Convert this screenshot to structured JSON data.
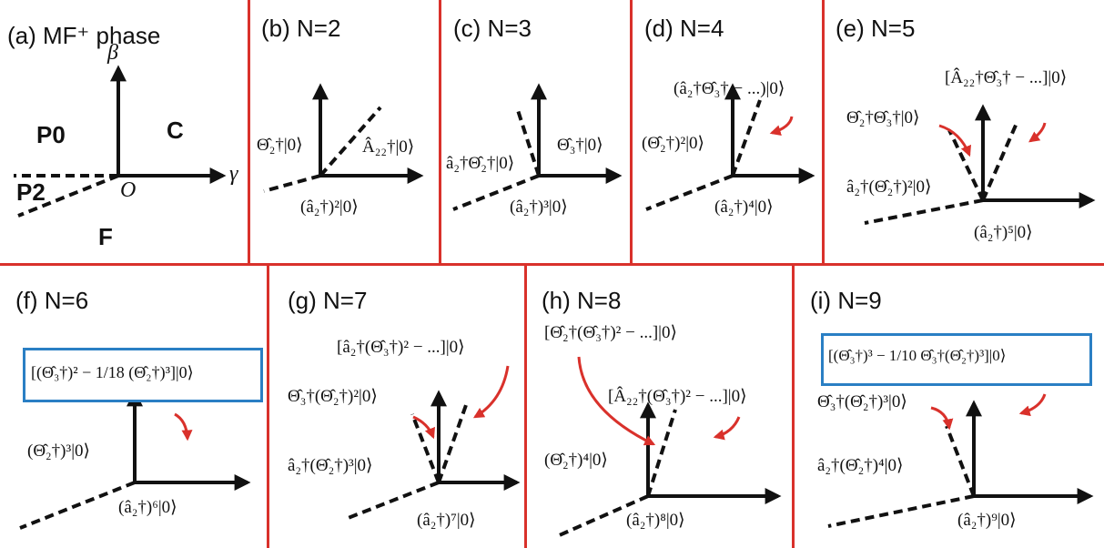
{
  "colors": {
    "divider": "#d9312b",
    "arrow": "#d9312b",
    "box": "#2a7fc4",
    "ink": "#111111"
  },
  "panels": {
    "a": {
      "title": "(a) MF⁺ phase",
      "phases": {
        "p0": "P0",
        "c": "C",
        "p2": "P2",
        "f": "F"
      },
      "axes": {
        "beta": "β",
        "gamma": "γ",
        "origin": "O"
      }
    },
    "b": {
      "title": "(b) N=2",
      "states": [
        "Θ̂₂†|0⟩",
        "Â₂₂†|0⟩",
        "(â₂†)²|0⟩"
      ]
    },
    "c": {
      "title": "(c) N=3",
      "states": [
        "â₂†Θ̂₂†|0⟩",
        "Θ̂₃†|0⟩",
        "(â₂†)³|0⟩"
      ]
    },
    "d": {
      "title": "(d) N=4",
      "states": [
        "(â₂†Θ̂₃† − ...)|0⟩",
        "(Θ̂₂†)²|0⟩",
        "(â₂†)⁴|0⟩"
      ]
    },
    "e": {
      "title": "(e) N=5",
      "states": [
        "[Â₂₂†Θ̂₃† − ...]|0⟩",
        "Θ̂₂†Θ̂₃†|0⟩",
        "â₂†(Θ̂₂†)²|0⟩",
        "(â₂†)⁵|0⟩"
      ]
    },
    "f": {
      "title": "(f) N=6",
      "states": [
        "[(Θ̂₃†)² − 1/18 (Θ̂₂†)³]|0⟩",
        "(Θ̂₂†)³|0⟩",
        "(â₂†)⁶|0⟩"
      ]
    },
    "g": {
      "title": "(g) N=7",
      "states": [
        "[â₂†(Θ̂₃†)² − ...]|0⟩",
        "Θ̂₃†(Θ̂₂†)²|0⟩",
        "â₂†(Θ̂₂†)³|0⟩",
        "(â₂†)⁷|0⟩"
      ]
    },
    "h": {
      "title": "(h) N=8",
      "states": [
        "[Θ̂₂†(Θ̂₃†)² − ...]|0⟩",
        "[Â₂₂†(Θ̂₃†)² − ...]|0⟩",
        "(Θ̂₂†)⁴|0⟩",
        "(â₂†)⁸|0⟩"
      ]
    },
    "i": {
      "title": "(i) N=9",
      "states": [
        "[(Θ̂₃†)³ − 1/10 Θ̂₃†(Θ̂₂†)³]|0⟩",
        "Θ̂₃†(Θ̂₂†)³|0⟩",
        "â₂†(Θ̂₂†)⁴|0⟩",
        "(â₂†)⁹|0⟩"
      ]
    }
  }
}
